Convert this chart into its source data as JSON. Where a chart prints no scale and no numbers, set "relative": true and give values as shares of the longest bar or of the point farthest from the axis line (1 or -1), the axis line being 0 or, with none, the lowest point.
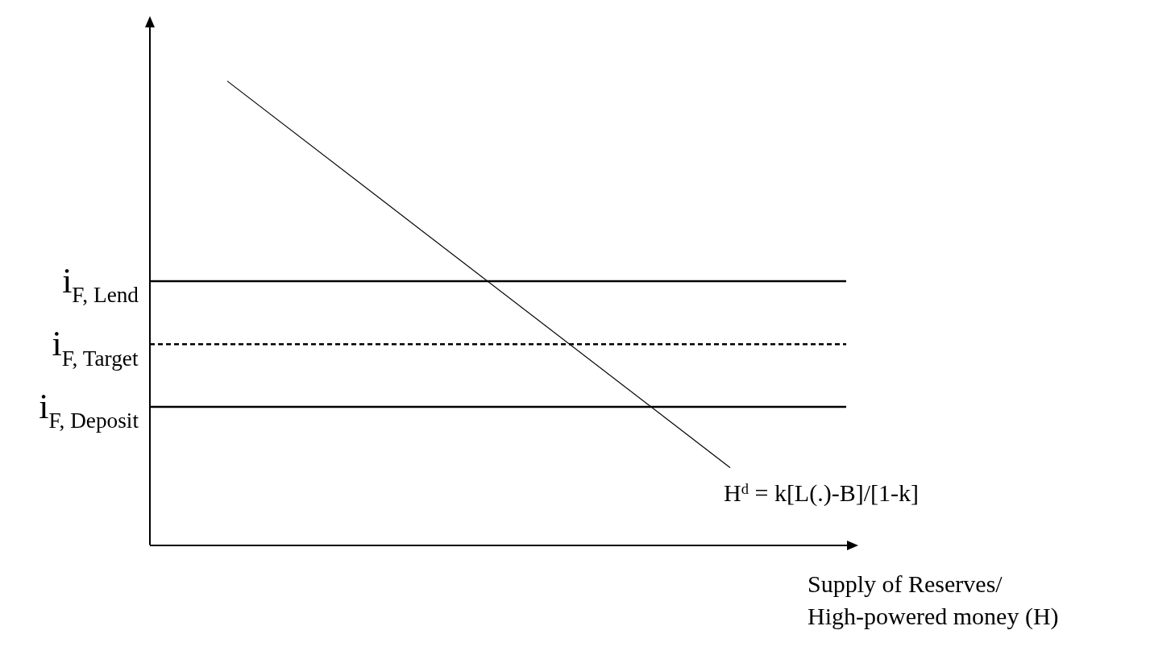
{
  "chart_data": {
    "type": "line",
    "relative": true,
    "xlabel": "Supply of Reserves/\nHigh-powered money (H)",
    "legend": false,
    "marker": "none",
    "categories": [
      null,
      null,
      null,
      null,
      null,
      null,
      null,
      null,
      null,
      null,
      null,
      null,
      null,
      null,
      null,
      null,
      null,
      null,
      null
    ],
    "series": [
      {
        "name": "H$^{d}$ = k[L(.)-B]/[1-k]",
        "color": "#000000",
        "values": [
          null,
          null,
          1,
          null,
          null,
          null,
          null,
          null,
          null,
          null,
          null,
          null,
          null,
          null,
          null,
          0.167,
          null,
          null,
          null
        ]
      },
      {
        "name": "i$_{F, Lend}$",
        "color": "#000000",
        "line_style": "solid",
        "values": [
          0.569,
          0.569,
          0.569,
          0.569,
          0.569,
          0.569,
          0.569,
          0.569,
          0.569,
          0.569,
          0.569,
          0.569,
          0.569,
          0.569,
          0.569,
          0.569,
          0.569,
          0.569,
          0.569
        ]
      },
      {
        "name": "i$_{F, Target}$",
        "color": "#000000",
        "line_style": "dashed",
        "values": [
          0.433,
          0.433,
          0.433,
          0.433,
          0.433,
          0.433,
          0.433,
          0.433,
          0.433,
          0.433,
          0.433,
          0.433,
          0.433,
          0.433,
          0.433,
          0.433,
          0.433,
          0.433,
          0.433
        ]
      },
      {
        "name": "i$_{F, Deposit}$",
        "color": "#000000",
        "line_style": "solid",
        "values": [
          0.298,
          0.298,
          0.298,
          0.298,
          0.298,
          0.298,
          0.298,
          0.298,
          0.298,
          0.298,
          0.298,
          0.298,
          0.298,
          0.298,
          0.298,
          0.298,
          0.298,
          0.298,
          0.298
        ]
      }
    ]
  }
}
